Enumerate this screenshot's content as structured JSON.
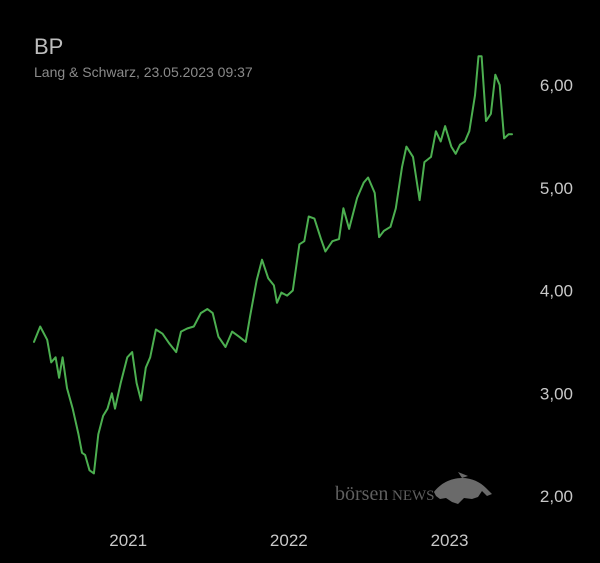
{
  "header": {
    "title": "BP",
    "subtitle": "Lang & Schwarz, 23.05.2023 09:37"
  },
  "watermark": {
    "left": "börsen",
    "right": "NEWS"
  },
  "colors": {
    "line": "#4caf50",
    "background": "#000000",
    "text": "#c8c8c8"
  },
  "chart_data": {
    "type": "line",
    "title": "BP",
    "xlim": [
      "2020-06-01",
      "2023-05-23"
    ],
    "ylim": [
      2.0,
      6.5
    ],
    "y_ticks": [
      2.0,
      3.0,
      4.0,
      5.0,
      6.0
    ],
    "y_tick_labels": [
      "2,00",
      "3,00",
      "4,00",
      "5,00",
      "6,00"
    ],
    "x_ticks": [
      "2021-01-01",
      "2022-01-01",
      "2023-01-01"
    ],
    "x_tick_labels": [
      "2021",
      "2022",
      "2023"
    ],
    "y_axis_position": "right",
    "grid": false,
    "series": [
      {
        "values": [
          {
            "x": "2020-06-01",
            "y": 3.5
          },
          {
            "x": "2020-06-15",
            "y": 3.65
          },
          {
            "x": "2020-07-01",
            "y": 3.52
          },
          {
            "x": "2020-07-10",
            "y": 3.3
          },
          {
            "x": "2020-07-20",
            "y": 3.35
          },
          {
            "x": "2020-07-28",
            "y": 3.15
          },
          {
            "x": "2020-08-05",
            "y": 3.35
          },
          {
            "x": "2020-08-15",
            "y": 3.05
          },
          {
            "x": "2020-08-28",
            "y": 2.85
          },
          {
            "x": "2020-09-10",
            "y": 2.6
          },
          {
            "x": "2020-09-18",
            "y": 2.42
          },
          {
            "x": "2020-09-25",
            "y": 2.4
          },
          {
            "x": "2020-10-05",
            "y": 2.25
          },
          {
            "x": "2020-10-15",
            "y": 2.22
          },
          {
            "x": "2020-10-25",
            "y": 2.6
          },
          {
            "x": "2020-11-05",
            "y": 2.78
          },
          {
            "x": "2020-11-15",
            "y": 2.85
          },
          {
            "x": "2020-11-25",
            "y": 3.0
          },
          {
            "x": "2020-12-02",
            "y": 2.85
          },
          {
            "x": "2020-12-15",
            "y": 3.1
          },
          {
            "x": "2020-12-30",
            "y": 3.35
          },
          {
            "x": "2021-01-10",
            "y": 3.4
          },
          {
            "x": "2021-01-20",
            "y": 3.1
          },
          {
            "x": "2021-01-30",
            "y": 2.93
          },
          {
            "x": "2021-02-10",
            "y": 3.25
          },
          {
            "x": "2021-02-20",
            "y": 3.35
          },
          {
            "x": "2021-03-05",
            "y": 3.62
          },
          {
            "x": "2021-03-20",
            "y": 3.58
          },
          {
            "x": "2021-04-05",
            "y": 3.48
          },
          {
            "x": "2021-04-20",
            "y": 3.4
          },
          {
            "x": "2021-05-01",
            "y": 3.6
          },
          {
            "x": "2021-05-15",
            "y": 3.63
          },
          {
            "x": "2021-05-30",
            "y": 3.65
          },
          {
            "x": "2021-06-15",
            "y": 3.78
          },
          {
            "x": "2021-06-30",
            "y": 3.82
          },
          {
            "x": "2021-07-12",
            "y": 3.78
          },
          {
            "x": "2021-07-25",
            "y": 3.55
          },
          {
            "x": "2021-08-10",
            "y": 3.45
          },
          {
            "x": "2021-08-25",
            "y": 3.6
          },
          {
            "x": "2021-09-10",
            "y": 3.55
          },
          {
            "x": "2021-09-25",
            "y": 3.5
          },
          {
            "x": "2021-10-05",
            "y": 3.75
          },
          {
            "x": "2021-10-20",
            "y": 4.1
          },
          {
            "x": "2021-11-01",
            "y": 4.3
          },
          {
            "x": "2021-11-15",
            "y": 4.12
          },
          {
            "x": "2021-11-28",
            "y": 4.05
          },
          {
            "x": "2021-12-05",
            "y": 3.88
          },
          {
            "x": "2021-12-15",
            "y": 3.98
          },
          {
            "x": "2021-12-28",
            "y": 3.95
          },
          {
            "x": "2022-01-10",
            "y": 4.0
          },
          {
            "x": "2022-01-25",
            "y": 4.45
          },
          {
            "x": "2022-02-05",
            "y": 4.48
          },
          {
            "x": "2022-02-15",
            "y": 4.72
          },
          {
            "x": "2022-02-28",
            "y": 4.7
          },
          {
            "x": "2022-03-15",
            "y": 4.5
          },
          {
            "x": "2022-03-25",
            "y": 4.38
          },
          {
            "x": "2022-04-10",
            "y": 4.48
          },
          {
            "x": "2022-04-25",
            "y": 4.5
          },
          {
            "x": "2022-05-05",
            "y": 4.8
          },
          {
            "x": "2022-05-18",
            "y": 4.6
          },
          {
            "x": "2022-06-05",
            "y": 4.9
          },
          {
            "x": "2022-06-20",
            "y": 5.05
          },
          {
            "x": "2022-06-30",
            "y": 5.1
          },
          {
            "x": "2022-07-15",
            "y": 4.95
          },
          {
            "x": "2022-07-25",
            "y": 4.52
          },
          {
            "x": "2022-08-05",
            "y": 4.58
          },
          {
            "x": "2022-08-20",
            "y": 4.62
          },
          {
            "x": "2022-09-01",
            "y": 4.8
          },
          {
            "x": "2022-09-15",
            "y": 5.2
          },
          {
            "x": "2022-09-25",
            "y": 5.4
          },
          {
            "x": "2022-10-10",
            "y": 5.3
          },
          {
            "x": "2022-10-25",
            "y": 4.88
          },
          {
            "x": "2022-11-05",
            "y": 5.25
          },
          {
            "x": "2022-11-20",
            "y": 5.3
          },
          {
            "x": "2022-12-01",
            "y": 5.55
          },
          {
            "x": "2022-12-12",
            "y": 5.45
          },
          {
            "x": "2022-12-22",
            "y": 5.6
          },
          {
            "x": "2023-01-05",
            "y": 5.4
          },
          {
            "x": "2023-01-15",
            "y": 5.33
          },
          {
            "x": "2023-01-25",
            "y": 5.42
          },
          {
            "x": "2023-02-05",
            "y": 5.45
          },
          {
            "x": "2023-02-15",
            "y": 5.55
          },
          {
            "x": "2023-02-28",
            "y": 5.9
          },
          {
            "x": "2023-03-08",
            "y": 6.28
          },
          {
            "x": "2023-03-15",
            "y": 6.28
          },
          {
            "x": "2023-03-25",
            "y": 5.65
          },
          {
            "x": "2023-04-05",
            "y": 5.72
          },
          {
            "x": "2023-04-15",
            "y": 6.1
          },
          {
            "x": "2023-04-25",
            "y": 6.0
          },
          {
            "x": "2023-05-05",
            "y": 5.48
          },
          {
            "x": "2023-05-15",
            "y": 5.52
          },
          {
            "x": "2023-05-23",
            "y": 5.52
          }
        ]
      }
    ]
  }
}
